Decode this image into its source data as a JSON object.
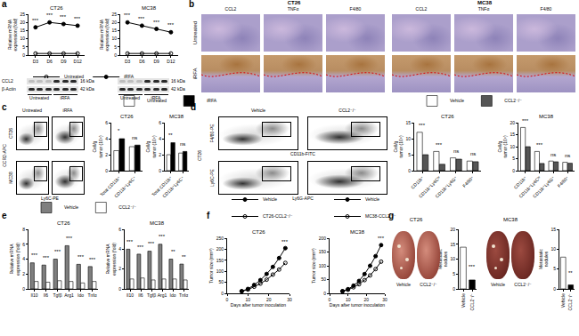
{
  "chart_data": [
    {
      "type": "line",
      "title": "CT26",
      "y_label": "Relative mRNA expression (fold)",
      "categories": [
        "D3",
        "D6",
        "D9",
        "D12"
      ],
      "series": [
        {
          "name": "Untreated",
          "color": "#000000",
          "marker": "circle-open",
          "values": [
            1,
            1,
            1,
            1
          ]
        },
        {
          "name": "iRFA",
          "color": "#000000",
          "marker": "circle",
          "values": [
            17,
            20,
            19,
            18
          ]
        }
      ],
      "ylim": [
        0,
        25
      ],
      "yticks": [
        0,
        5,
        10,
        15,
        20,
        25
      ],
      "legend": "bottom",
      "annotations": [
        {
          "x": "D3",
          "y": 18.5,
          "text": "***"
        },
        {
          "x": "D6",
          "y": 21.5,
          "text": "***"
        },
        {
          "x": "D9",
          "y": 20.5,
          "text": "***"
        },
        {
          "x": "D12",
          "y": 19.5,
          "text": "***"
        }
      ]
    },
    {
      "type": "line",
      "title": "MC38",
      "y_label": "Relative mRNA expression (fold)",
      "categories": [
        "D3",
        "D6",
        "D9",
        "D12"
      ],
      "series": [
        {
          "name": "Untreated",
          "color": "#000000",
          "marker": "circle-open",
          "values": [
            1,
            1,
            1,
            1
          ]
        },
        {
          "name": "iRFA",
          "color": "#000000",
          "marker": "circle",
          "values": [
            20,
            18,
            16,
            14
          ]
        }
      ],
      "ylim": [
        0,
        25
      ],
      "yticks": [
        0,
        5,
        10,
        15,
        20,
        25
      ],
      "annotations": [
        {
          "x": "D3",
          "y": 21.5,
          "text": "***"
        },
        {
          "x": "D6",
          "y": 19.5,
          "text": "***"
        },
        {
          "x": "D9",
          "y": 17.5,
          "text": "***"
        },
        {
          "x": "D12",
          "y": 15.5,
          "text": "***"
        }
      ]
    },
    {
      "type": "bar",
      "title": "CT26",
      "y_label": "Cell/g tumor (10⁵)",
      "categories": [
        "Total CD11b⁺",
        "CD11b⁺Ly6C⁺"
      ],
      "series": [
        {
          "name": "Untreated",
          "color": "#ffffff",
          "values": [
            2.5,
            3.0
          ]
        },
        {
          "name": "iRFA",
          "color": "#000000",
          "values": [
            4.0,
            3.2
          ]
        }
      ],
      "ylim": [
        0,
        6
      ],
      "yticks": [
        0,
        2,
        4,
        6
      ],
      "legend": "top",
      "annotations": [
        {
          "x": "Total CD11b⁺",
          "y": 4.4,
          "text": "*"
        },
        {
          "x": "CD11b⁺Ly6C⁺",
          "y": 3.6,
          "text": "ns"
        }
      ]
    },
    {
      "type": "bar",
      "title": "MC38",
      "y_label": "Cell/g tumor (10⁵)",
      "categories": [
        "Total CD11b⁺",
        "CD11b⁺Ly6C⁺"
      ],
      "series": [
        {
          "name": "Untreated",
          "color": "#ffffff",
          "values": [
            2.0,
            2.2
          ]
        },
        {
          "name": "iRFA",
          "color": "#000000",
          "values": [
            3.5,
            2.4
          ]
        }
      ],
      "ylim": [
        0,
        6
      ],
      "yticks": [
        0,
        2,
        4,
        6
      ],
      "annotations": [
        {
          "x": "Total CD11b⁺",
          "y": 3.9,
          "text": "**"
        },
        {
          "x": "CD11b⁺Ly6C⁺",
          "y": 2.8,
          "text": "ns"
        }
      ]
    },
    {
      "type": "bar",
      "title": "CT26",
      "y_label": "Cell/g tumor (10⁵)",
      "categories": [
        "CD11b⁺",
        "CD11b⁺Ly6Cʰⁱ",
        "CD11b⁺Ly6G⁺",
        "F4/80⁺"
      ],
      "series": [
        {
          "name": "Vehicle",
          "color": "#ffffff",
          "values": [
            12,
            6,
            4,
            3
          ]
        },
        {
          "name": "CCL2⁻/⁻",
          "color": "#555555",
          "values": [
            5,
            2,
            3.6,
            2.8
          ]
        }
      ],
      "ylim": [
        0,
        15
      ],
      "yticks": [
        0,
        5,
        10,
        15
      ],
      "legend": "top",
      "annotations": [
        {
          "x": "CD11b⁺",
          "y": 12.8,
          "text": "***"
        },
        {
          "x": "CD11b⁺Ly6Cʰⁱ",
          "y": 6.8,
          "text": "***"
        },
        {
          "x": "CD11b⁺Ly6G⁺",
          "y": 4.8,
          "text": "ns"
        },
        {
          "x": "F4/80⁺",
          "y": 3.8,
          "text": "ns"
        }
      ]
    },
    {
      "type": "bar",
      "title": "MC38",
      "y_label": "Cell/g tumor (10⁵)",
      "categories": [
        "CD11b⁺",
        "CD11b⁺Ly6Cʰⁱ",
        "CD11b⁺Ly6G⁺",
        "F4/80⁺"
      ],
      "series": [
        {
          "name": "Vehicle",
          "color": "#ffffff",
          "values": [
            18,
            8,
            4,
            3.5
          ]
        },
        {
          "name": "CCL2⁻/⁻",
          "color": "#555555",
          "values": [
            10,
            3,
            3.7,
            3.1
          ]
        }
      ],
      "ylim": [
        0,
        20
      ],
      "yticks": [
        0,
        5,
        10,
        15,
        20
      ],
      "annotations": [
        {
          "x": "CD11b⁺",
          "y": 18.8,
          "text": "***"
        },
        {
          "x": "CD11b⁺Ly6Cʰⁱ",
          "y": 8.8,
          "text": "***"
        },
        {
          "x": "CD11b⁺Ly6G⁺",
          "y": 4.8,
          "text": "ns"
        },
        {
          "x": "F4/80⁺",
          "y": 4.3,
          "text": "ns"
        }
      ]
    },
    {
      "type": "bar",
      "title": "CT26",
      "y_label": "Relative mRNA expression (fold)",
      "categories": [
        "Il10",
        "Il6",
        "Tgfβ",
        "Arg1",
        "Ido",
        "Tnfα"
      ],
      "series": [
        {
          "name": "Vehicle",
          "color": "#7f7f7f",
          "values": [
            3.5,
            3.2,
            4.0,
            5.8,
            3.3,
            3.0
          ]
        },
        {
          "name": "CCL2⁻/⁻",
          "color": "#ffffff",
          "values": [
            1.0,
            0.9,
            1.1,
            1.0,
            0.8,
            1.0
          ]
        }
      ],
      "ylim": [
        0,
        8
      ],
      "yticks": [
        0,
        2,
        4,
        6,
        8
      ],
      "legend": "top",
      "annotations": [
        {
          "x": "Il10",
          "y": 3.9,
          "text": "***"
        },
        {
          "x": "Il6",
          "y": 3.6,
          "text": "***"
        },
        {
          "x": "Tgfβ",
          "y": 4.4,
          "text": "***"
        },
        {
          "x": "Arg1",
          "y": 6.2,
          "text": "***"
        },
        {
          "x": "Ido",
          "y": 3.7,
          "text": "***"
        },
        {
          "x": "Tnfα",
          "y": 3.4,
          "text": "***"
        }
      ]
    },
    {
      "type": "bar",
      "title": "MC38",
      "y_label": "Relative mRNA expression (fold)",
      "categories": [
        "Il10",
        "Il6",
        "Tgfβ",
        "Arg1",
        "Ido",
        "Tnfα"
      ],
      "series": [
        {
          "name": "Vehicle",
          "color": "#7f7f7f",
          "values": [
            4.0,
            3.5,
            3.8,
            4.5,
            3.0,
            2.5
          ]
        },
        {
          "name": "CCL2⁻/⁻",
          "color": "#ffffff",
          "values": [
            1.0,
            1.1,
            0.9,
            1.0,
            1.0,
            0.9
          ]
        }
      ],
      "ylim": [
        0,
        6
      ],
      "yticks": [
        0,
        2,
        4,
        6
      ],
      "annotations": [
        {
          "x": "Il10",
          "y": 4.3,
          "text": "***"
        },
        {
          "x": "Il6",
          "y": 3.8,
          "text": "***"
        },
        {
          "x": "Tgfβ",
          "y": 4.1,
          "text": "***"
        },
        {
          "x": "Arg1",
          "y": 4.8,
          "text": "***"
        },
        {
          "x": "Ido",
          "y": 3.3,
          "text": "**"
        },
        {
          "x": "Tnfα",
          "y": 2.8,
          "text": "**"
        }
      ]
    },
    {
      "type": "line",
      "title": "CT26",
      "x_label": "Days after tumor inoculation",
      "y_label": "Tumor size (mm³)",
      "x": [
        7,
        10,
        13,
        16,
        19,
        22,
        25,
        28
      ],
      "series": [
        {
          "name": "Vehicle",
          "color": "#000000",
          "marker": "circle",
          "values": [
            10,
            20,
            38,
            60,
            88,
            120,
            160,
            205
          ]
        },
        {
          "name": "CT26-CCL2⁻/⁻",
          "color": "#000000",
          "marker": "circle-open",
          "values": [
            9,
            17,
            30,
            44,
            62,
            85,
            108,
            138
          ]
        }
      ],
      "xlim": [
        0,
        30
      ],
      "xticks": [
        0,
        10,
        20,
        30
      ],
      "ylim": [
        0,
        250
      ],
      "yticks": [
        0,
        50,
        100,
        150,
        200,
        250
      ],
      "legend": "top",
      "annotations": [
        {
          "x": 28,
          "y": 215,
          "text": "***"
        }
      ]
    },
    {
      "type": "line",
      "title": "MC38",
      "x_label": "Days after tumor inoculation",
      "y_label": "Tumor size (mm³)",
      "x": [
        7,
        10,
        13,
        16,
        19,
        22,
        25,
        28
      ],
      "series": [
        {
          "name": "Vehicle",
          "color": "#000000",
          "marker": "circle",
          "values": [
            8,
            15,
            28,
            45,
            70,
            100,
            135,
            175
          ]
        },
        {
          "name": "MC38-CCL2⁻/⁻",
          "color": "#000000",
          "marker": "circle-open",
          "values": [
            7,
            13,
            22,
            33,
            48,
            65,
            88,
            115
          ]
        }
      ],
      "xlim": [
        0,
        30
      ],
      "xticks": [
        0,
        10,
        20,
        30
      ],
      "ylim": [
        0,
        200
      ],
      "yticks": [
        0,
        50,
        100,
        150,
        200
      ],
      "legend": "top",
      "annotations": [
        {
          "x": 28,
          "y": 183,
          "text": "***"
        }
      ]
    },
    {
      "type": "bar",
      "y_label": "Metastatic nodules",
      "categories": [
        "Vehicle",
        "CCL2⁻/⁻"
      ],
      "values": [
        14,
        3
      ],
      "colors": [
        "#ffffff",
        "#000000"
      ],
      "ylim": [
        0,
        20
      ],
      "yticks": [
        0,
        5,
        10,
        15,
        20
      ],
      "annotations": [
        {
          "x": "CCL2⁻/⁻",
          "y": 6,
          "text": "***"
        }
      ]
    },
    {
      "type": "bar",
      "y_label": "Metastatic nodules",
      "categories": [
        "Vehicle",
        "CCL2⁻/⁻"
      ],
      "values": [
        8,
        1
      ],
      "colors": [
        "#ffffff",
        "#000000"
      ],
      "ylim": [
        0,
        15
      ],
      "yticks": [
        0,
        5,
        10,
        15
      ],
      "annotations": [
        {
          "x": "CCL2⁻/⁻",
          "y": 3,
          "text": "**"
        }
      ]
    }
  ],
  "panels": {
    "letters": [
      "a",
      "b",
      "c",
      "d",
      "e",
      "f",
      "g"
    ],
    "blot": {
      "groups": [
        "CT26",
        "MC38"
      ],
      "rows": [
        {
          "label": "CCL2",
          "size": "16 kDa"
        },
        {
          "label": "β-Actin",
          "size": "42 kDa"
        }
      ],
      "lanes": [
        "Untreated",
        "iRFA"
      ]
    },
    "histology": {
      "groups": [
        "CT26",
        "MC38"
      ],
      "stains": [
        "CCL2",
        "TNFα",
        "F4/80"
      ],
      "rows": [
        "Untreated",
        "iRFA"
      ]
    },
    "flow_c": {
      "columns": [
        "Untreated",
        "iRFA"
      ],
      "rows": [
        "CT26",
        "MC38"
      ],
      "x_label": "Ly6C-PE",
      "y_label": "CCR2-APC"
    },
    "flow_d": {
      "group": "CT26",
      "columns": [
        "Vehicle",
        "CCL2⁻/⁻"
      ],
      "plots": [
        {
          "x_label": "CD11b-FITC",
          "y_label": "F4/80-PE"
        },
        {
          "x_label": "Ly6G-APC",
          "y_label": "Ly6C-PE"
        }
      ]
    },
    "photos_g": [
      {
        "title": "CT26",
        "labels": [
          "Vehicle",
          "CCL2⁻/⁻"
        ]
      },
      {
        "title": "MC38",
        "labels": [
          "Vehicle",
          "CCL2⁻/⁻"
        ]
      }
    ]
  }
}
